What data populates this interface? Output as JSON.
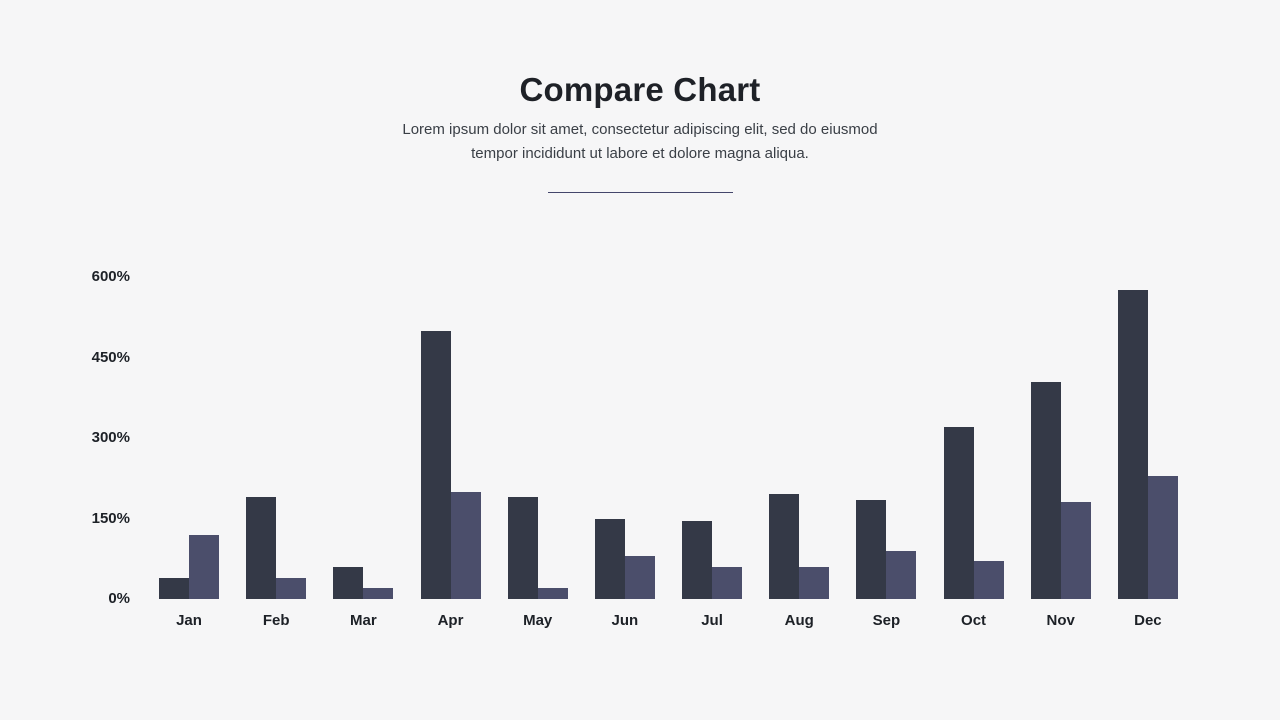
{
  "header": {
    "title": "Compare Chart",
    "subtitle_lines": [
      "Lorem ipsum dolor sit amet, consectetur adipiscing elit, sed do eiusmod",
      "tempor incididunt ut labore et dolore magna aliqua."
    ]
  },
  "colors": {
    "background": "#f6f6f7",
    "bar_dark": "#343947",
    "bar_light": "#4b4e6b",
    "divider": "#44466b",
    "title_text": "#1e2127",
    "subtitle_text": "#3a3f46",
    "axis_text": "#1d2127"
  },
  "chart_data": {
    "type": "bar",
    "title": "Compare Chart",
    "categories": [
      "Jan",
      "Feb",
      "Mar",
      "Apr",
      "May",
      "Jun",
      "Jul",
      "Aug",
      "Sep",
      "Oct",
      "Nov",
      "Dec"
    ],
    "series": [
      {
        "name": "series-dark",
        "color": "#343947",
        "values": [
          40,
          190,
          60,
          500,
          190,
          150,
          145,
          195,
          185,
          320,
          405,
          575
        ]
      },
      {
        "name": "series-light",
        "color": "#4b4e6b",
        "values": [
          120,
          40,
          20,
          200,
          20,
          80,
          60,
          60,
          90,
          70,
          180,
          230
        ]
      }
    ],
    "unit": "%",
    "xlabel": "",
    "ylabel": "",
    "ylim": [
      0,
      600
    ],
    "y_ticks": [
      {
        "value": 0,
        "label": "0%"
      },
      {
        "value": 150,
        "label": "150%"
      },
      {
        "value": 300,
        "label": "300%"
      },
      {
        "value": 450,
        "label": "450%"
      },
      {
        "value": 600,
        "label": "600%"
      }
    ],
    "grid": false,
    "legend": "none"
  }
}
